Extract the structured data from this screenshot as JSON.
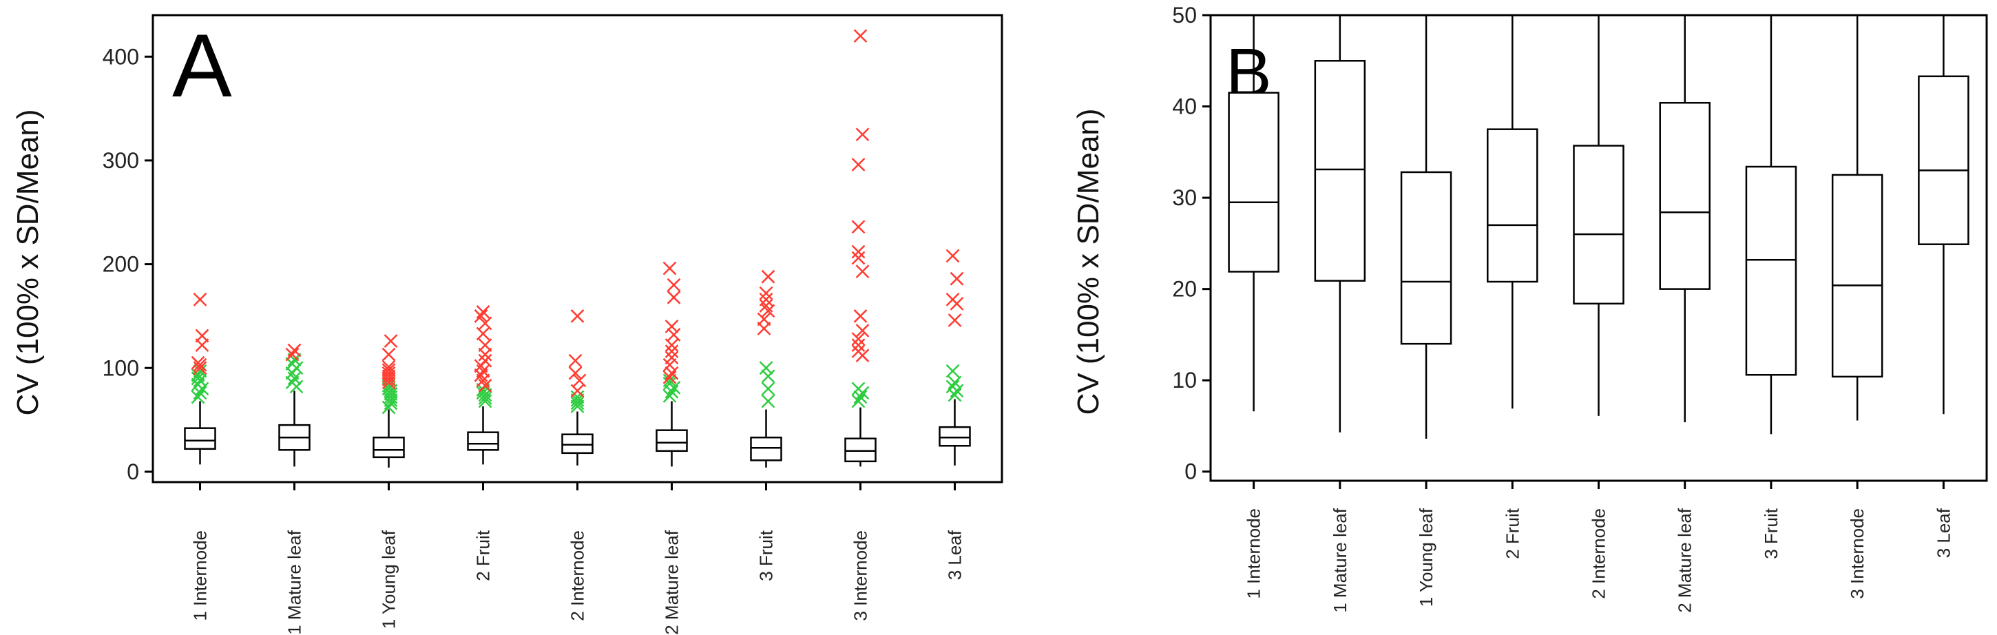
{
  "chart_data": [
    {
      "type": "boxplot",
      "panel_label": "A",
      "ylabel": "CV (100% x SD/Mean)",
      "xlabel": "",
      "ylim": [
        -10,
        440
      ],
      "yticks": [
        0,
        100,
        200,
        300,
        400
      ],
      "categories": [
        "1 Internode",
        "1 Mature leaf",
        "1 Young leaf",
        "2 Fruit",
        "2 Internode",
        "2 Mature leaf",
        "3 Fruit",
        "3 Internode",
        "3 Leaf"
      ],
      "colors": {
        "extreme_outlier": "#ff3b30",
        "mild_outlier": "#2ecc40",
        "box": "#000000"
      },
      "boxes": [
        {
          "whisker_low": 7,
          "q1": 22,
          "median": 30,
          "q3": 42,
          "whisker_high": 68,
          "mild_outliers": [
            72,
            76,
            80,
            84,
            88,
            90,
            93,
            97
          ],
          "extreme_outliers": [
            100,
            103,
            105,
            122,
            131,
            166
          ]
        },
        {
          "whisker_low": 5,
          "q1": 21,
          "median": 33,
          "q3": 45,
          "whisker_high": 78,
          "mild_outliers": [
            82,
            86,
            90,
            95,
            100,
            104,
            108
          ],
          "extreme_outliers": [
            113,
            117
          ]
        },
        {
          "whisker_low": 4,
          "q1": 14,
          "median": 21,
          "q3": 33,
          "whisker_high": 60,
          "mild_outliers": [
            62,
            66,
            69,
            72,
            75,
            78,
            80,
            83
          ],
          "extreme_outliers": [
            86,
            89,
            92,
            95,
            98,
            101,
            113,
            126
          ]
        },
        {
          "whisker_low": 7,
          "q1": 21,
          "median": 27,
          "q3": 38,
          "whisker_high": 63,
          "mild_outliers": [
            68,
            71,
            74,
            76,
            79
          ],
          "extreme_outliers": [
            83,
            88,
            93,
            97,
            102,
            107,
            113,
            122,
            133,
            143,
            150,
            154
          ]
        },
        {
          "whisker_low": 6,
          "q1": 18,
          "median": 26,
          "q3": 36,
          "whisker_high": 58,
          "mild_outliers": [
            63,
            66,
            69,
            72
          ],
          "extreme_outliers": [
            78,
            88,
            95,
            107,
            150
          ]
        },
        {
          "whisker_low": 5,
          "q1": 20,
          "median": 28,
          "q3": 40,
          "whisker_high": 68,
          "mild_outliers": [
            73,
            77,
            81,
            85,
            88
          ],
          "extreme_outliers": [
            91,
            95,
            103,
            110,
            116,
            122,
            132,
            140,
            168,
            180,
            196
          ]
        },
        {
          "whisker_low": 4,
          "q1": 11,
          "median": 23,
          "q3": 33,
          "whisker_high": 60,
          "mild_outliers": [
            68,
            80,
            92,
            100
          ],
          "extreme_outliers": [
            138,
            147,
            155,
            160,
            166,
            172,
            188
          ]
        },
        {
          "whisker_low": 5,
          "q1": 10,
          "median": 20,
          "q3": 32,
          "whisker_high": 62,
          "mild_outliers": [
            68,
            72,
            76,
            80
          ],
          "extreme_outliers": [
            112,
            116,
            122,
            128,
            136,
            150,
            193,
            206,
            212,
            236,
            296,
            325,
            420
          ]
        },
        {
          "whisker_low": 6,
          "q1": 25,
          "median": 33,
          "q3": 43,
          "whisker_high": 70,
          "mild_outliers": [
            74,
            78,
            82,
            86,
            97
          ],
          "extreme_outliers": [
            146,
            162,
            166,
            186,
            208
          ]
        }
      ]
    },
    {
      "type": "boxplot",
      "panel_label": "B",
      "ylabel": "CV (100% x SD/Mean)",
      "xlabel": "",
      "ylim": [
        -1,
        50
      ],
      "yticks": [
        0,
        10,
        20,
        30,
        40,
        50
      ],
      "categories": [
        "1 Internode",
        "1 Mature leaf",
        "1 Young leaf",
        "2 Fruit",
        "2 Internode",
        "2 Mature leaf",
        "3 Fruit",
        "3 Internode",
        "3 Leaf"
      ],
      "boxes": [
        {
          "whisker_low": 6.6,
          "q1": 21.9,
          "median": 29.5,
          "q3": 41.5,
          "whisker_high": 50
        },
        {
          "whisker_low": 4.3,
          "q1": 20.9,
          "median": 33.1,
          "q3": 45.0,
          "whisker_high": 50
        },
        {
          "whisker_low": 3.6,
          "q1": 14.0,
          "median": 20.8,
          "q3": 32.8,
          "whisker_high": 50
        },
        {
          "whisker_low": 6.9,
          "q1": 20.8,
          "median": 27.0,
          "q3": 37.5,
          "whisker_high": 50
        },
        {
          "whisker_low": 6.1,
          "q1": 18.4,
          "median": 26.0,
          "q3": 35.7,
          "whisker_high": 50
        },
        {
          "whisker_low": 5.4,
          "q1": 20.0,
          "median": 28.4,
          "q3": 40.4,
          "whisker_high": 50
        },
        {
          "whisker_low": 4.1,
          "q1": 10.6,
          "median": 23.2,
          "q3": 33.4,
          "whisker_high": 50
        },
        {
          "whisker_low": 5.6,
          "q1": 10.4,
          "median": 20.4,
          "q3": 32.5,
          "whisker_high": 50
        },
        {
          "whisker_low": 6.3,
          "q1": 24.9,
          "median": 33.0,
          "q3": 43.3,
          "whisker_high": 50
        }
      ]
    }
  ]
}
